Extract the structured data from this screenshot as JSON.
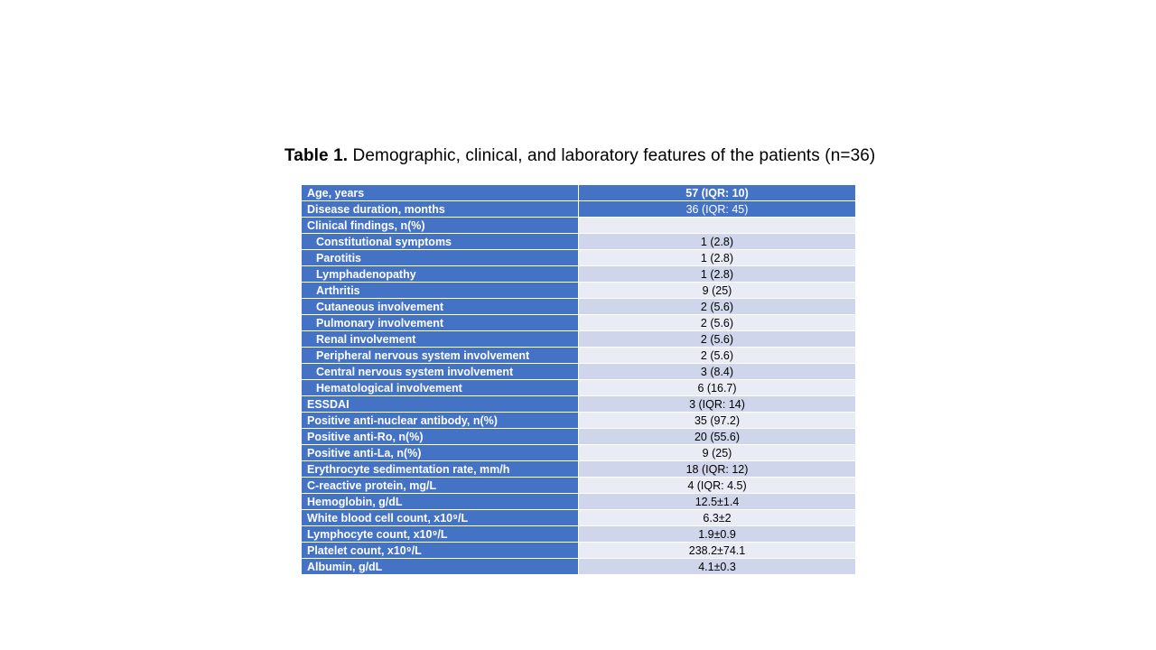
{
  "caption": {
    "label": "Table 1.",
    "text": "Demographic, clinical, and laboratory features of the patients (n=36)"
  },
  "table": {
    "rows": [
      {
        "name": "Age, years",
        "value": "57 (IQR: 10)",
        "indent": false
      },
      {
        "name": "Disease duration, months",
        "value": "36 (IQR: 45)",
        "indent": false
      },
      {
        "name": "Clinical findings, n(%)",
        "value": "",
        "indent": false
      },
      {
        "name": "Constitutional symptoms",
        "value": "1 (2.8)",
        "indent": true
      },
      {
        "name": "Parotitis",
        "value": "1 (2.8)",
        "indent": true
      },
      {
        "name": "Lymphadenopathy",
        "value": "1 (2.8)",
        "indent": true
      },
      {
        "name": "Arthritis",
        "value": "9 (25)",
        "indent": true
      },
      {
        "name": "Cutaneous involvement",
        "value": "2 (5.6)",
        "indent": true
      },
      {
        "name": "Pulmonary involvement",
        "value": "2 (5.6)",
        "indent": true
      },
      {
        "name": "Renal involvement",
        "value": "2 (5.6)",
        "indent": true
      },
      {
        "name": "Peripheral nervous system involvement",
        "value": "2 (5.6)",
        "indent": true
      },
      {
        "name": "Central nervous system involvement",
        "value": "3 (8.4)",
        "indent": true
      },
      {
        "name": "Hematological involvement",
        "value": "6 (16.7)",
        "indent": true
      },
      {
        "name": "ESSDAI",
        "value": "3 (IQR: 14)",
        "indent": false
      },
      {
        "name": "Positive anti-nuclear antibody, n(%)",
        "value": "35 (97.2)",
        "indent": false
      },
      {
        "name": "Positive anti-Ro, n(%)",
        "value": "20 (55.6)",
        "indent": false
      },
      {
        "name": "Positive anti-La, n(%)",
        "value": "9 (25)",
        "indent": false
      },
      {
        "name": "Erythrocyte sedimentation rate, mm/h",
        "value": "18 (IQR: 12)",
        "indent": false
      },
      {
        "name": "C-reactive protein, mg/L",
        "value": "4 (IQR: 4.5)",
        "indent": false
      },
      {
        "name": "Hemoglobin, g/dL",
        "value": "12.5±1.4",
        "indent": false
      },
      {
        "name": "White blood cell count, x10⁹/L",
        "value": "6.3±2",
        "indent": false
      },
      {
        "name": "Lymphocyte count, x10⁹/L",
        "value": "1.9±0.9",
        "indent": false
      },
      {
        "name": "Platelet count, x10⁹/L",
        "value": "238.2±74.1",
        "indent": false
      },
      {
        "name": "Albumin, g/dL",
        "value": "4.1±0.3",
        "indent": false
      }
    ]
  }
}
